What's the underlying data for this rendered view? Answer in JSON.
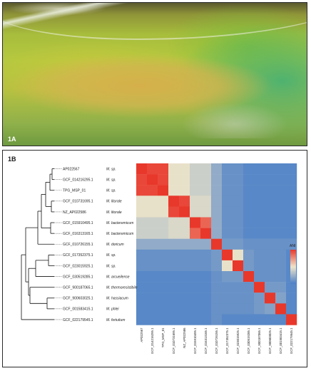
{
  "panel_a": {
    "label": "1A"
  },
  "panel_b": {
    "label": "1B",
    "legend_title": "ANI",
    "colors": {
      "high": "#e8382b",
      "mid": "#efe5c9",
      "low": "#4a7fc7"
    },
    "chart_data": {
      "type": "heatmap",
      "title": "",
      "row_labels": [
        "AP022567",
        "GCF_014216295.1",
        "TPG_MSP_01",
        "GCF_010731695.1",
        "NZ_AP022586",
        "GCF_015910495.1",
        "GCF_016313165.1",
        "GCF_010726155.1",
        "GCF_017352375.1",
        "GCF_023015925.1",
        "GCF_030519285.1",
        "GCF_900187065.1",
        "GCF_900603025.1",
        "GCF_001583415.1",
        "GCF_022179545.1"
      ],
      "species": [
        "M. sp.",
        "M. sp.",
        "M. sp.",
        "M. litorale",
        "M. litorale",
        "M. bacteremicum",
        "M. bacteremicum",
        "M. doricum",
        "M. sp.",
        "M. sp.",
        "M. arcueilense",
        "M. thermoresistibile",
        "M. hassiacum",
        "M. phlei",
        "M. fortuitum"
      ],
      "column_labels": [
        "AP022567",
        "GCF_014216295.1",
        "TPG_MSP_01",
        "GCF_010731695.1",
        "NZ_AP022586",
        "GCF_015910495.1",
        "GCF_016313165.1",
        "GCF_010726155.1",
        "GCF_017352375.1",
        "GCF_023015925.1",
        "GCF_030519285.1",
        "GCF_900187065.1",
        "GCF_900603025.1",
        "GCF_001583415.1",
        "GCF_022179545.1"
      ],
      "values": [
        [
          100,
          99,
          99,
          88,
          88,
          86,
          86,
          82,
          79,
          79,
          78,
          78,
          78,
          78,
          78
        ],
        [
          99,
          100,
          99,
          88,
          88,
          86,
          86,
          82,
          79,
          79,
          78,
          78,
          78,
          78,
          78
        ],
        [
          99,
          99,
          100,
          88,
          88,
          86,
          86,
          82,
          79,
          79,
          78,
          78,
          78,
          78,
          78
        ],
        [
          88,
          88,
          88,
          100,
          99,
          87,
          87,
          82,
          79,
          79,
          78,
          78,
          78,
          78,
          78
        ],
        [
          88,
          88,
          88,
          99,
          100,
          87,
          87,
          82,
          79,
          79,
          78,
          78,
          78,
          78,
          78
        ],
        [
          86,
          86,
          86,
          87,
          87,
          100,
          97,
          82,
          79,
          79,
          78,
          78,
          78,
          78,
          78
        ],
        [
          86,
          86,
          86,
          87,
          87,
          97,
          100,
          82,
          79,
          79,
          78,
          78,
          78,
          78,
          78
        ],
        [
          82,
          82,
          82,
          82,
          82,
          82,
          82,
          100,
          80,
          80,
          79,
          79,
          79,
          79,
          79
        ],
        [
          79,
          79,
          79,
          79,
          79,
          79,
          79,
          80,
          100,
          88,
          80,
          79,
          79,
          79,
          78
        ],
        [
          79,
          79,
          79,
          79,
          79,
          79,
          79,
          80,
          88,
          100,
          80,
          79,
          79,
          79,
          78
        ],
        [
          78,
          78,
          78,
          78,
          78,
          78,
          78,
          79,
          80,
          80,
          100,
          79,
          79,
          79,
          78
        ],
        [
          78,
          78,
          78,
          78,
          78,
          78,
          78,
          79,
          79,
          79,
          79,
          100,
          80,
          80,
          78
        ],
        [
          78,
          78,
          78,
          78,
          78,
          78,
          78,
          79,
          79,
          79,
          79,
          80,
          100,
          81,
          78
        ],
        [
          78,
          78,
          78,
          78,
          78,
          78,
          78,
          79,
          79,
          79,
          79,
          80,
          81,
          100,
          78
        ],
        [
          78,
          78,
          78,
          78,
          78,
          78,
          78,
          79,
          78,
          78,
          78,
          78,
          78,
          78,
          100
        ]
      ],
      "value_range": [
        77,
        100
      ],
      "legend": "right"
    }
  }
}
